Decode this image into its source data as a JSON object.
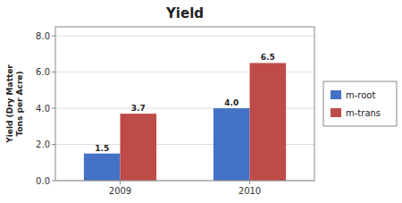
{
  "chart_data": {
    "type": "bar",
    "title": "Yield",
    "ylabel": "Yield (Dry Matter\nTons per Acre)",
    "categories": [
      "2009",
      "2010"
    ],
    "series": [
      {
        "name": "m-root",
        "color": "#4472C4",
        "values": [
          1.5,
          4.0
        ],
        "value_labels": [
          "1.5",
          "4.0"
        ]
      },
      {
        "name": "m-trans",
        "color": "#BE4B48",
        "values": [
          3.7,
          6.5
        ],
        "value_labels": [
          "3.7",
          "6.5"
        ]
      }
    ],
    "ylim": [
      0,
      8.5
    ],
    "yticks": [
      {
        "value": 0.0,
        "label": "0.0"
      },
      {
        "value": 2.0,
        "label": "2.0"
      },
      {
        "value": 4.0,
        "label": "4.0"
      },
      {
        "value": 6.0,
        "label": "6.0"
      },
      {
        "value": 8.0,
        "label": "8.0"
      }
    ],
    "grid": true,
    "legend": "right",
    "data_labels": true
  }
}
